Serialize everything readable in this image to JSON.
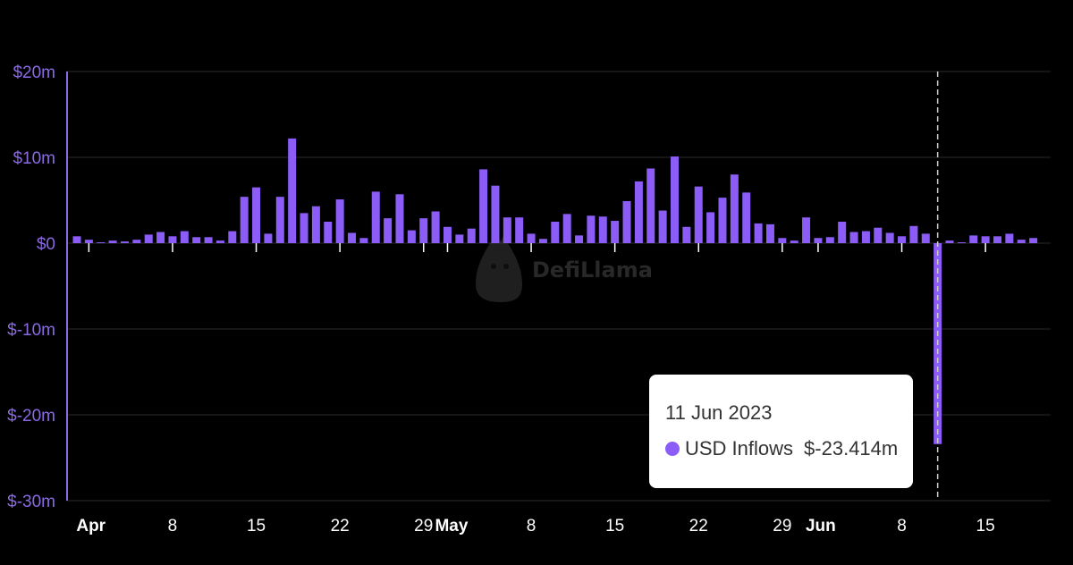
{
  "colors": {
    "bar": "#8b5cf6",
    "axis": "#8a6ae3",
    "grid": "#2a2a2a",
    "background": "#000000",
    "watermark": "#4a4a4a"
  },
  "watermark": {
    "text": "DefiLlama",
    "icon": "llama-logo-icon"
  },
  "tooltip": {
    "date": "11 Jun 2023",
    "series_label": "USD Inflows",
    "value": "$-23.414m"
  },
  "chart_data": {
    "type": "bar",
    "title": "",
    "xlabel": "",
    "ylabel": "",
    "ylim": [
      -30,
      20
    ],
    "y_unit": "USD millions",
    "yticks": [
      {
        "value": 20,
        "label": "$20m"
      },
      {
        "value": 10,
        "label": "$10m"
      },
      {
        "value": 0,
        "label": "$0"
      },
      {
        "value": -10,
        "label": "$-10m"
      },
      {
        "value": -20,
        "label": "$-20m"
      },
      {
        "value": -30,
        "label": "$-30m"
      }
    ],
    "xticks": [
      {
        "date": "2023-04-01",
        "label": "Apr",
        "bold": true
      },
      {
        "date": "2023-04-08",
        "label": "8",
        "bold": false
      },
      {
        "date": "2023-04-15",
        "label": "15",
        "bold": false
      },
      {
        "date": "2023-04-22",
        "label": "22",
        "bold": false
      },
      {
        "date": "2023-04-29",
        "label": "29",
        "bold": false
      },
      {
        "date": "2023-05-01",
        "label": "May",
        "bold": true
      },
      {
        "date": "2023-05-08",
        "label": "8",
        "bold": false
      },
      {
        "date": "2023-05-15",
        "label": "15",
        "bold": false
      },
      {
        "date": "2023-05-22",
        "label": "22",
        "bold": false
      },
      {
        "date": "2023-05-29",
        "label": "29",
        "bold": false
      },
      {
        "date": "2023-06-01",
        "label": "Jun",
        "bold": true
      },
      {
        "date": "2023-06-08",
        "label": "8",
        "bold": false
      },
      {
        "date": "2023-06-15",
        "label": "15",
        "bold": false
      }
    ],
    "highlight_date": "2023-06-11",
    "series": [
      {
        "name": "USD Inflows",
        "start_date": "2023-03-31",
        "values": [
          0.8,
          0.4,
          0.1,
          0.3,
          0.2,
          0.4,
          1.0,
          1.3,
          0.8,
          1.4,
          0.7,
          0.7,
          0.3,
          1.4,
          5.4,
          6.5,
          1.1,
          5.4,
          12.2,
          3.5,
          4.3,
          2.5,
          5.1,
          1.2,
          0.6,
          6.0,
          2.9,
          5.7,
          1.5,
          2.9,
          3.7,
          1.9,
          1.0,
          1.7,
          8.6,
          6.7,
          3.0,
          3.0,
          1.1,
          0.5,
          2.5,
          3.4,
          0.9,
          3.2,
          3.1,
          2.6,
          4.9,
          7.2,
          8.7,
          3.8,
          10.1,
          1.9,
          6.6,
          3.6,
          5.3,
          8.0,
          5.9,
          2.3,
          2.2,
          0.6,
          0.3,
          3.0,
          0.6,
          0.7,
          2.5,
          1.3,
          1.4,
          1.8,
          1.2,
          0.8,
          2.0,
          1.1,
          -23.414,
          0.3,
          0.1,
          0.9,
          0.8,
          0.8,
          1.1,
          0.4,
          0.6
        ]
      }
    ]
  }
}
